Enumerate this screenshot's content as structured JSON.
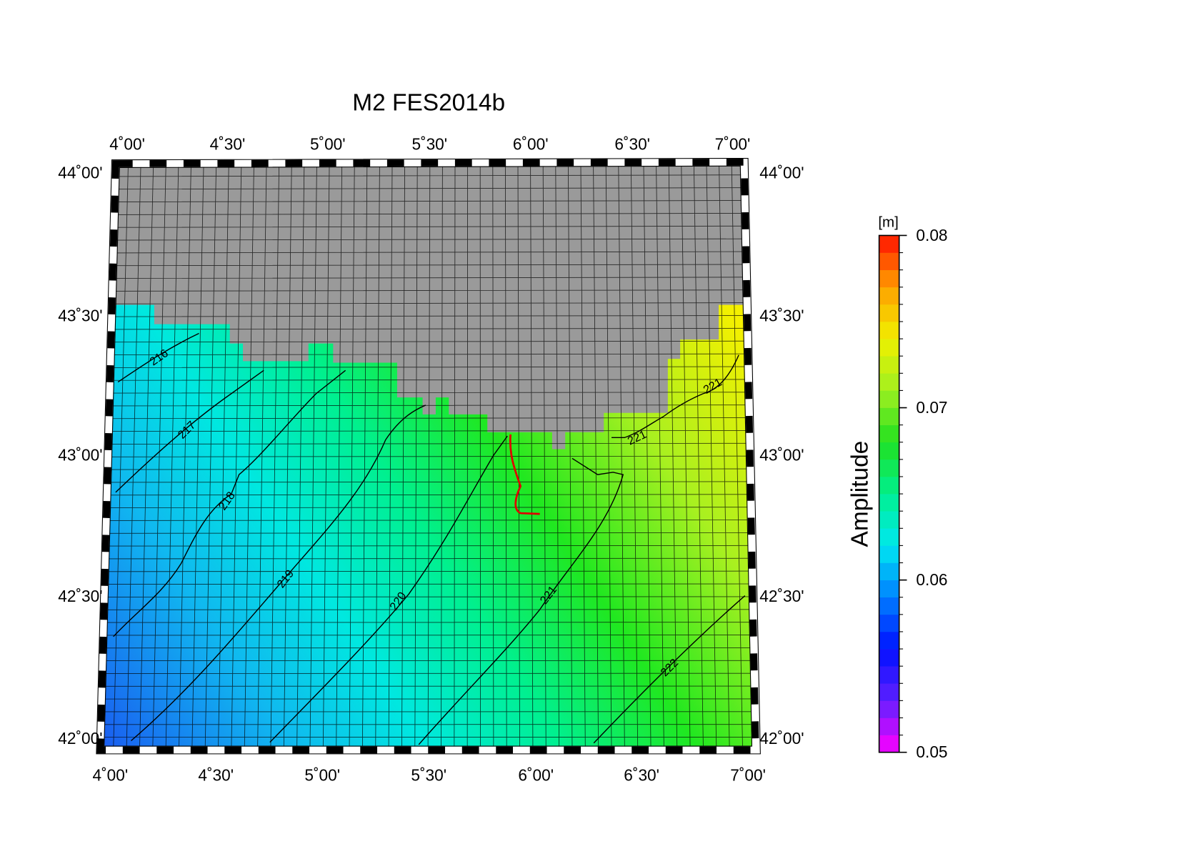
{
  "title": "M2 FES2014b",
  "map": {
    "lon_ticks": [
      {
        "value": 4.0,
        "label": "4˚00'"
      },
      {
        "value": 4.5,
        "label": "4˚30'"
      },
      {
        "value": 5.0,
        "label": "5˚00'"
      },
      {
        "value": 5.5,
        "label": "5˚30'"
      },
      {
        "value": 6.0,
        "label": "6˚00'"
      },
      {
        "value": 6.5,
        "label": "6˚30'"
      },
      {
        "value": 7.0,
        "label": "7˚00'"
      }
    ],
    "lat_ticks": [
      {
        "value": 44.0,
        "label": "44˚00'"
      },
      {
        "value": 43.5,
        "label": "43˚30'"
      },
      {
        "value": 43.0,
        "label": "43˚00'"
      },
      {
        "value": 42.5,
        "label": "42˚30'"
      },
      {
        "value": 42.0,
        "label": "42˚00'"
      }
    ],
    "contour_labels": [
      216,
      217,
      218,
      219,
      220,
      221,
      221,
      221,
      222
    ]
  },
  "colorbar": {
    "title": "Amplitude",
    "unit": "[m]",
    "lim": [
      0.05,
      0.08
    ],
    "ticks": [
      0.05,
      0.06,
      0.07,
      0.08
    ]
  }
}
